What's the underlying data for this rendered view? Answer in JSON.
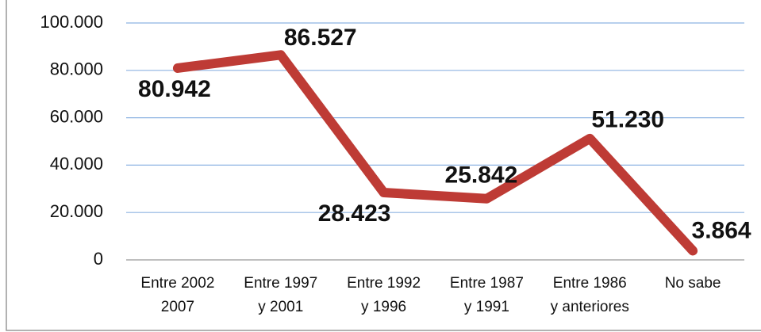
{
  "chart_data": {
    "type": "line",
    "categories": [
      "Entre 2002\n2007",
      "Entre 1997\ny 2001",
      "Entre 1992\ny 1996",
      "Entre 1987\ny 1991",
      "Entre 1986\ny anteriores",
      "No sabe"
    ],
    "series": [
      {
        "color": "#be3b35",
        "values": [
          80942,
          86527,
          28423,
          25842,
          51230,
          3864
        ],
        "value_labels": [
          "80.942",
          "86.527",
          "28.423",
          "25.842",
          "51.230",
          "3.864"
        ]
      }
    ],
    "ylim": [
      0,
      100000
    ],
    "yticks": [
      {
        "value": 0,
        "label": "0"
      },
      {
        "value": 20000,
        "label": "20.000"
      },
      {
        "value": 40000,
        "label": "40.000"
      },
      {
        "value": 60000,
        "label": "60.000"
      },
      {
        "value": 80000,
        "label": "80.000"
      },
      {
        "value": 100000,
        "label": "100.000"
      }
    ],
    "grid": true
  }
}
